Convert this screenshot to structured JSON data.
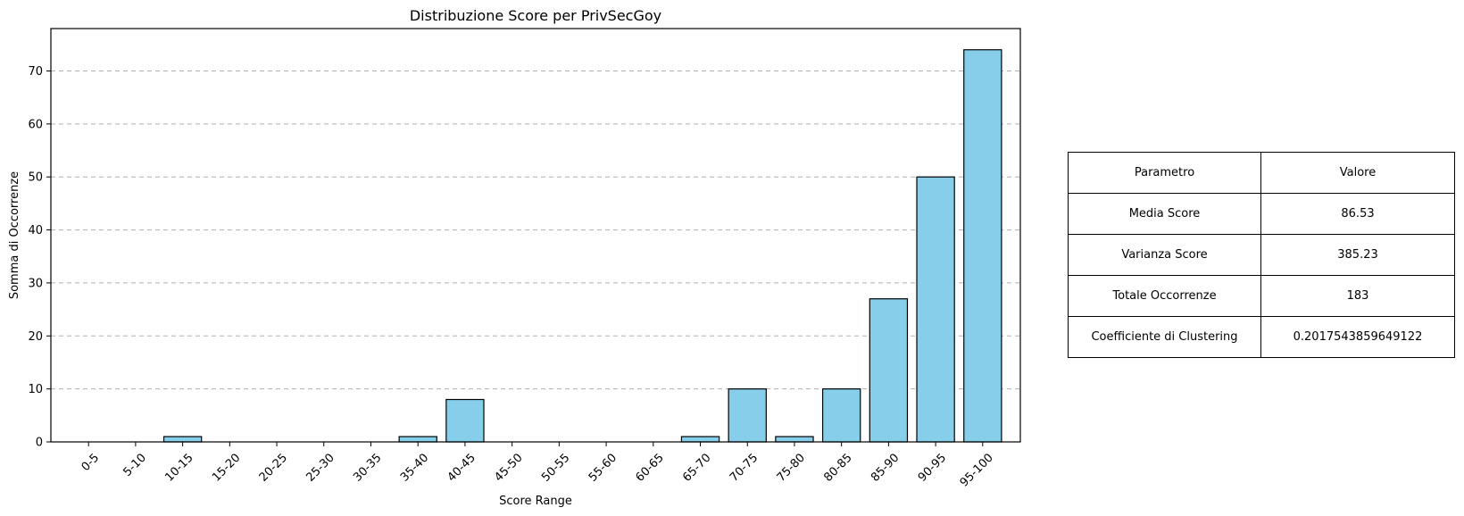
{
  "chart_data": {
    "type": "bar",
    "title": "Distribuzione Score per PrivSecGoy",
    "xlabel": "Score Range",
    "ylabel": "Somma di Occorrenze",
    "categories": [
      "0-5",
      "5-10",
      "10-15",
      "15-20",
      "20-25",
      "25-30",
      "30-35",
      "35-40",
      "40-45",
      "45-50",
      "50-55",
      "55-60",
      "60-65",
      "65-70",
      "70-75",
      "75-80",
      "80-85",
      "85-90",
      "90-95",
      "95-100"
    ],
    "values": [
      0,
      0,
      1,
      0,
      0,
      0,
      0,
      1,
      8,
      0,
      0,
      0,
      0,
      1,
      10,
      1,
      10,
      27,
      50,
      74
    ],
    "ylim": [
      0,
      78
    ],
    "yticks": [
      0,
      10,
      20,
      30,
      40,
      50,
      60,
      70
    ],
    "grid": "y-dashed",
    "bar_color": "#87ceeb",
    "edge_color": "#000000"
  },
  "table": {
    "header": [
      "Parametro",
      "Valore"
    ],
    "rows": [
      [
        "Media Score",
        "86.53"
      ],
      [
        "Varianza Score",
        "385.23"
      ],
      [
        "Totale Occorrenze",
        "183"
      ],
      [
        "Coefficiente di Clustering",
        "0.2017543859649122"
      ]
    ]
  }
}
